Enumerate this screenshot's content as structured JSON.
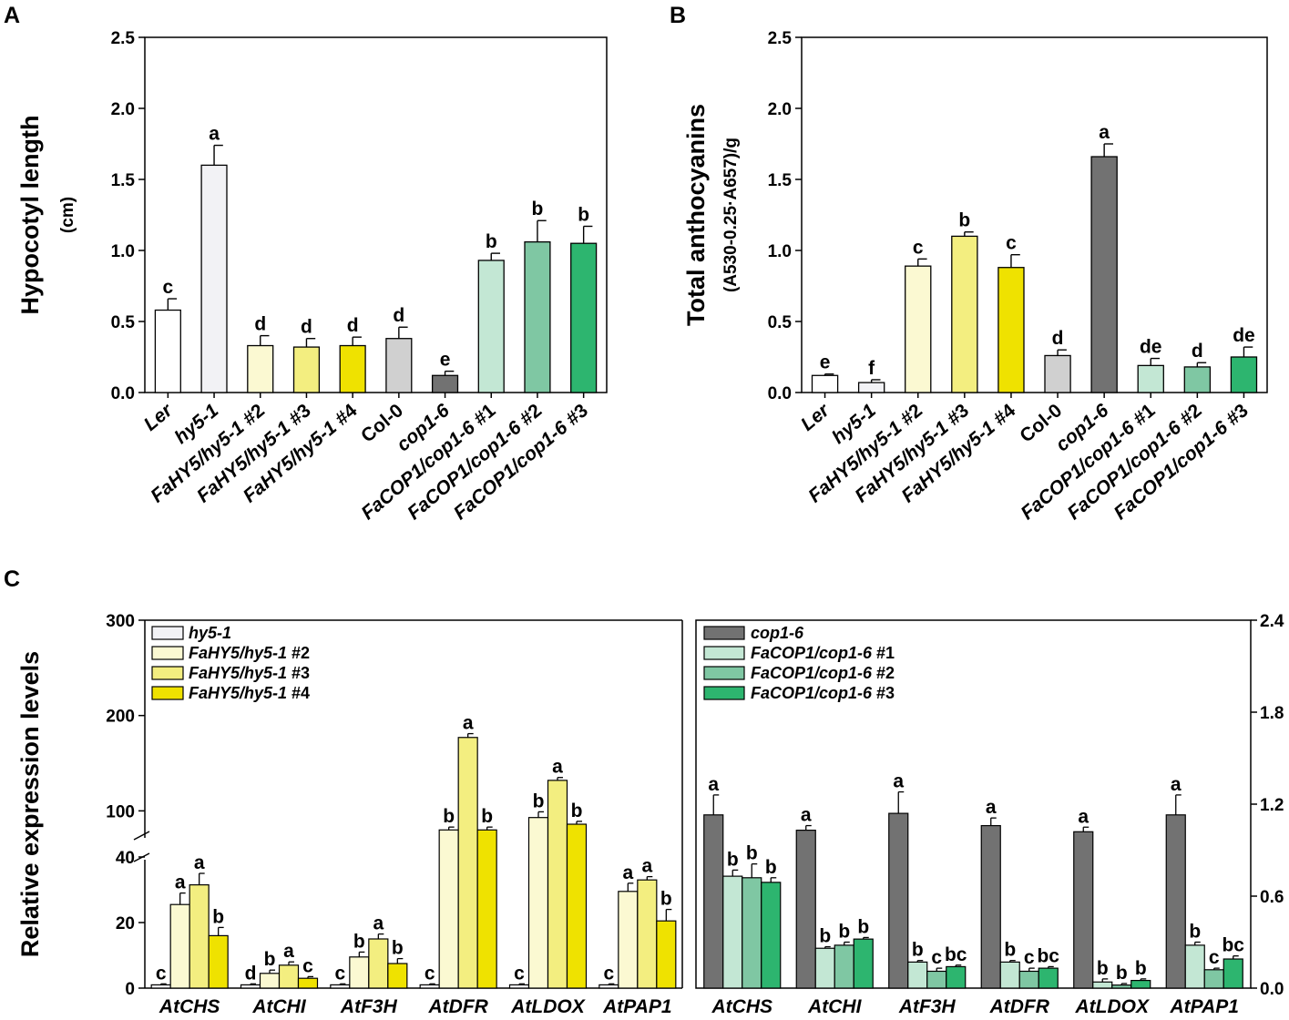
{
  "chart_data": [
    {
      "panel": "A",
      "type": "bar",
      "ylabel": "Hypocotyl length",
      "ylabel_unit": "(cm)",
      "ylim": [
        0,
        2.5
      ],
      "yticks": [
        "0.0",
        "0.5",
        "1.0",
        "1.5",
        "2.0",
        "2.5"
      ],
      "categories": [
        "Ler",
        "hy5-1",
        "FaHY5/hy5-1 #2",
        "FaHY5/hy5-1 #3",
        "FaHY5/hy5-1 #4",
        "Col-0",
        "cop1-6",
        "FaCOP1/cop1-6 #1",
        "FaCOP1/cop1-6 #2",
        "FaCOP1/cop1-6 #3"
      ],
      "values": [
        0.58,
        1.6,
        0.33,
        0.32,
        0.33,
        0.38,
        0.12,
        0.93,
        1.06,
        1.05
      ],
      "errors": [
        0.08,
        0.14,
        0.07,
        0.06,
        0.06,
        0.08,
        0.03,
        0.05,
        0.15,
        0.12
      ],
      "labels": [
        "c",
        "a",
        "d",
        "d",
        "d",
        "d",
        "e",
        "b",
        "b",
        "b"
      ],
      "colors": [
        "#ffffff",
        "#f2f2f5",
        "#fbf9d2",
        "#f3ee80",
        "#efe200",
        "#d0d0d0",
        "#727272",
        "#c3e7d4",
        "#7fc7a3",
        "#2db56f"
      ]
    },
    {
      "panel": "B",
      "type": "bar",
      "ylabel": "Total anthocyanins",
      "ylabel_unit": "(A530-0.25·A657)/g",
      "ylim": [
        0,
        2.5
      ],
      "yticks": [
        "0.0",
        "0.5",
        "1.0",
        "1.5",
        "2.0",
        "2.5"
      ],
      "categories": [
        "Ler",
        "hy5-1",
        "FaHY5/hy5-1 #2",
        "FaHY5/hy5-1 #3",
        "FaHY5/hy5-1 #4",
        "Col-0",
        "cop1-6",
        "FaCOP1/cop1-6 #1",
        "FaCOP1/cop1-6 #2",
        "FaCOP1/cop1-6 #3"
      ],
      "values": [
        0.12,
        0.07,
        0.89,
        1.1,
        0.88,
        0.26,
        1.66,
        0.19,
        0.18,
        0.25
      ],
      "errors": [
        0.01,
        0.02,
        0.05,
        0.03,
        0.09,
        0.04,
        0.09,
        0.05,
        0.03,
        0.07
      ],
      "labels": [
        "e",
        "f",
        "c",
        "b",
        "c",
        "d",
        "a",
        "de",
        "d",
        "de"
      ],
      "colors": [
        "#ffffff",
        "#f2f2f5",
        "#fbf9d2",
        "#f3ee80",
        "#efe200",
        "#d0d0d0",
        "#727272",
        "#c3e7d4",
        "#7fc7a3",
        "#2db56f"
      ]
    },
    {
      "panel": "C",
      "type": "bar",
      "ylabel": "Relative expression levels",
      "axis_break": [
        40,
        65
      ],
      "ylim": [
        0,
        300
      ],
      "yticks": [
        "0",
        "20",
        "40",
        "100",
        "200",
        "300"
      ],
      "categories": [
        "AtCHS",
        "AtCHI",
        "AtF3H",
        "AtDFR",
        "AtLDOX",
        "AtPAP1"
      ],
      "series": [
        {
          "name": "hy5-1",
          "color": "#f2f2f5",
          "values": [
            1,
            1,
            1,
            1,
            1,
            1
          ],
          "errors": [
            0.3,
            0.3,
            0.3,
            0.3,
            0.3,
            0.3
          ],
          "labels": [
            "c",
            "d",
            "c",
            "c",
            "c",
            "c"
          ]
        },
        {
          "name": "FaHY5/hy5-1 #2",
          "color": "#fbf9d2",
          "values": [
            25.5,
            4.5,
            9.5,
            80,
            93,
            29.5
          ],
          "errors": [
            3.5,
            1,
            1.5,
            3,
            6,
            2.5
          ],
          "labels": [
            "a",
            "b",
            "b",
            "b",
            "b",
            "a"
          ]
        },
        {
          "name": "FaHY5/hy5-1 #3",
          "color": "#f3ee80",
          "values": [
            31.5,
            7,
            15,
            177,
            132,
            33
          ],
          "errors": [
            3.5,
            1,
            1.5,
            4,
            3,
            1
          ],
          "labels": [
            "a",
            "a",
            "a",
            "a",
            "a",
            "a"
          ]
        },
        {
          "name": "FaHY5/hy5-1 #4",
          "color": "#efe200",
          "values": [
            16,
            3,
            7.5,
            80,
            86,
            20.5
          ],
          "errors": [
            2.5,
            0.5,
            1.5,
            3,
            3,
            3.5
          ],
          "labels": [
            "b",
            "c",
            "b",
            "b",
            "b",
            "b"
          ]
        }
      ]
    },
    {
      "panel": "C-right",
      "type": "bar",
      "ylim": [
        0,
        2.4
      ],
      "yticks": [
        "0.0",
        "0.6",
        "1.2",
        "1.8",
        "2.4"
      ],
      "categories": [
        "AtCHS",
        "AtCHI",
        "AtF3H",
        "AtDFR",
        "AtLDOX",
        "AtPAP1"
      ],
      "series": [
        {
          "name": "cop1-6",
          "color": "#727272",
          "values": [
            1.13,
            1.03,
            1.14,
            1.06,
            1.02,
            1.13
          ],
          "errors": [
            0.13,
            0.03,
            0.14,
            0.05,
            0.03,
            0.13
          ],
          "labels": [
            "a",
            "a",
            "a",
            "a",
            "a",
            "a"
          ]
        },
        {
          "name": "FaCOP1/cop1-6 #1",
          "color": "#c3e7d4",
          "values": [
            0.73,
            0.26,
            0.17,
            0.17,
            0.04,
            0.28
          ],
          "errors": [
            0.04,
            0.01,
            0.01,
            0.01,
            0.02,
            0.02
          ],
          "labels": [
            "b",
            "b",
            "b",
            "b",
            "b",
            "b"
          ]
        },
        {
          "name": "FaCOP1/cop1-6 #2",
          "color": "#7fc7a3",
          "values": [
            0.72,
            0.28,
            0.11,
            0.11,
            0.02,
            0.12
          ],
          "errors": [
            0.09,
            0.02,
            0.02,
            0.02,
            0.01,
            0.01
          ],
          "labels": [
            "b",
            "b",
            "c",
            "c",
            "b",
            "c"
          ]
        },
        {
          "name": "FaCOP1/cop1-6 #3",
          "color": "#2db56f",
          "values": [
            0.69,
            0.32,
            0.14,
            0.13,
            0.05,
            0.19
          ],
          "errors": [
            0.03,
            0.01,
            0.01,
            0.01,
            0.01,
            0.02
          ],
          "labels": [
            "b",
            "b",
            "bc",
            "bc",
            "b",
            "bc"
          ]
        }
      ]
    }
  ]
}
